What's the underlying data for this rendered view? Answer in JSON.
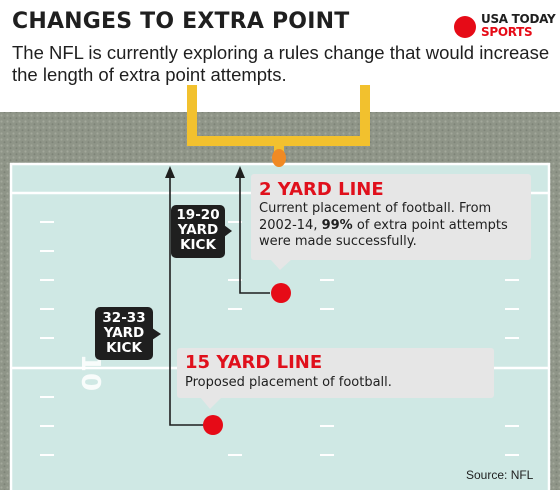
{
  "header": {
    "headline": "CHANGES TO EXTRA POINT",
    "dek": "The NFL is currently exploring a rules change that would increase the length of extra point attempts."
  },
  "logo": {
    "line1": "USA TODAY",
    "line2": "SPORTS",
    "dot_color": "#e60b17"
  },
  "field": {
    "yard_number": "10",
    "colors": {
      "stands": "#8f9588",
      "field": "#cfe8e4",
      "goalpost": "#f2c12e",
      "ball": "#e60b17"
    }
  },
  "callouts": {
    "two_yard": {
      "title": "2 YARD LINE",
      "body_before": "Current placement of football. From 2002-14, ",
      "body_bold": "99%",
      "body_after": " of extra point attempts were made successfully."
    },
    "fifteen_yard": {
      "title": "15 YARD LINE",
      "body": "Proposed placement of football."
    }
  },
  "kicks": {
    "short": {
      "line1": "19-20",
      "line2": "YARD",
      "line3": "KICK"
    },
    "long": {
      "line1": "32-33",
      "line2": "YARD",
      "line3": "KICK"
    }
  },
  "source": "Source: NFL"
}
